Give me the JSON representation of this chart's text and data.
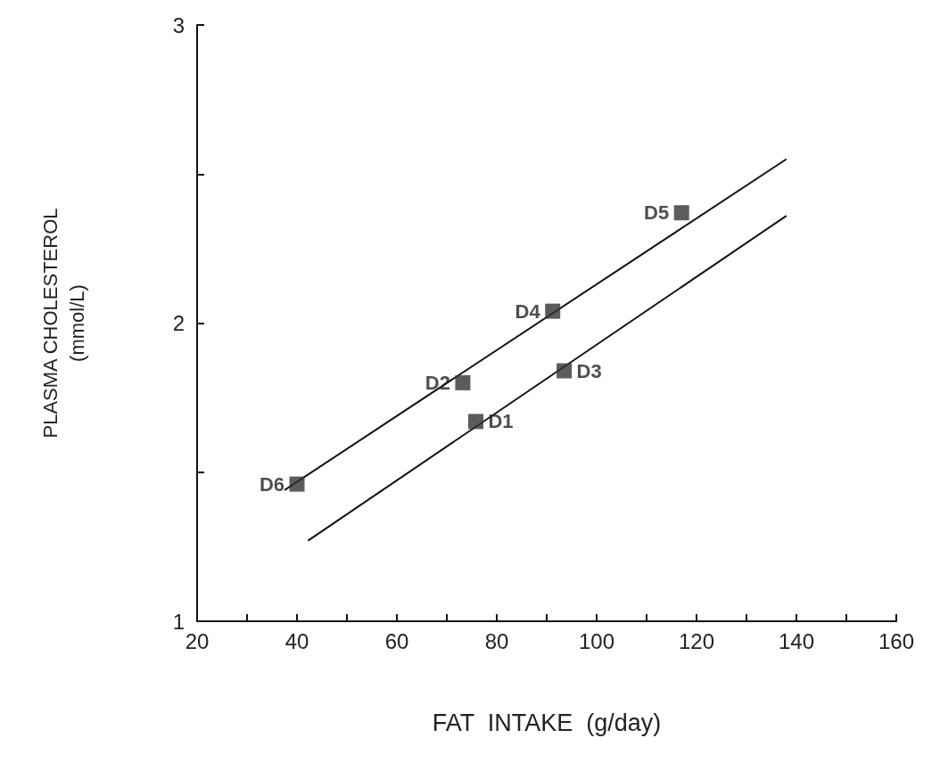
{
  "chart_data": {
    "type": "scatter",
    "xlabel": "FAT  INTAKE  (g/day)",
    "ylabel": "PLASMA CHOLESTEROL (mmol/L)",
    "series": [
      {
        "color": "#333333",
        "marker": "square",
        "x": [
          75.8,
          73.2,
          93.5,
          91.2,
          117,
          40
        ],
        "values": [
          1.67,
          1.8,
          1.84,
          2.04,
          2.37,
          1.46
        ]
      },
      {
        "type": "line",
        "color": "#111111",
        "marker": "none",
        "x": [
          37.5,
          138
        ],
        "values": [
          1.44,
          2.55
        ]
      },
      {
        "type": "line",
        "color": "#111111",
        "marker": "none",
        "x": [
          42.2,
          138
        ],
        "values": [
          1.27,
          2.36
        ]
      }
    ],
    "annotations": [
      {
        "text": "D1",
        "x": 75.8,
        "y": 1.67
      },
      {
        "text": "D2",
        "x": 73.2,
        "y": 1.8
      },
      {
        "text": "D3",
        "x": 93.5,
        "y": 1.84
      },
      {
        "text": "D4",
        "x": 91.2,
        "y": 2.04
      },
      {
        "text": "D5",
        "x": 117,
        "y": 2.37
      },
      {
        "text": "D6",
        "x": 40,
        "y": 1.46
      }
    ],
    "xlim": [
      20,
      160
    ],
    "xticks": [
      20,
      {
        "value": 30,
        "label": null
      },
      40,
      {
        "value": 50,
        "label": null
      },
      60,
      {
        "value": 70,
        "label": null
      },
      80,
      {
        "value": 90,
        "label": null
      },
      100,
      {
        "value": 110,
        "label": null
      },
      120,
      {
        "value": 130,
        "label": null
      },
      140,
      {
        "value": 150,
        "label": null
      },
      160
    ],
    "ylim": [
      1,
      3
    ],
    "yticks": [
      1,
      {
        "value": 1.5,
        "label": null
      },
      2,
      {
        "value": 2.5,
        "label": null
      },
      3
    ],
    "grid": false
  }
}
